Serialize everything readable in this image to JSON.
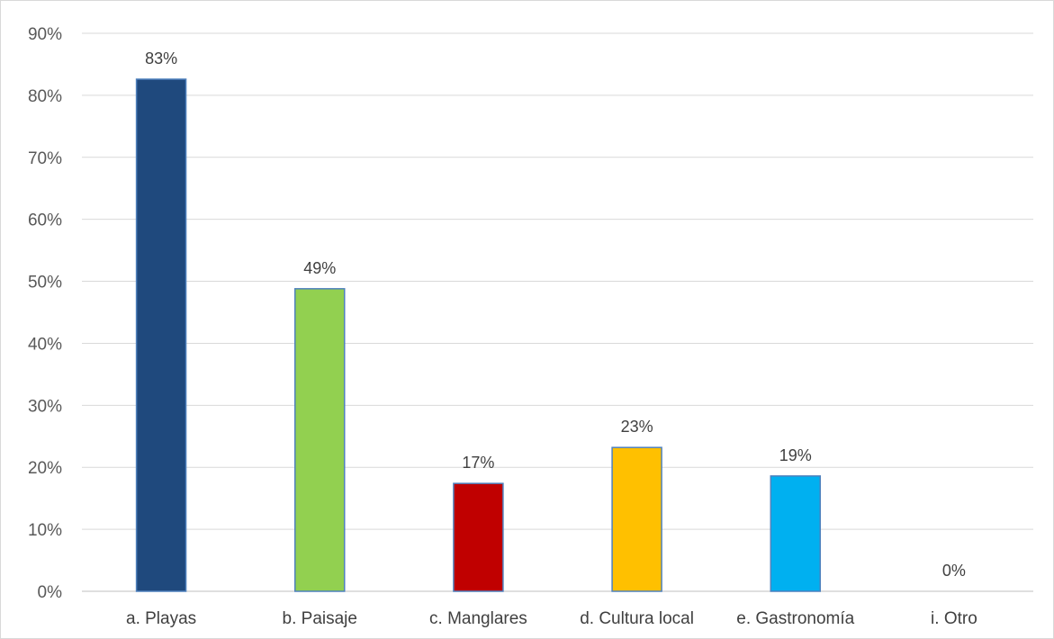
{
  "chart_data": {
    "type": "bar",
    "categories": [
      "a. Playas",
      "b. Paisaje",
      "c. Manglares",
      "d. Cultura local",
      "e. Gastronomía",
      "i. Otro"
    ],
    "values": [
      0.826,
      0.488,
      0.174,
      0.232,
      0.186,
      0.0
    ],
    "data_labels": [
      "83%",
      "49%",
      "17%",
      "23%",
      "19%",
      "0%"
    ],
    "bar_colors": [
      "#1f497d",
      "#92d050",
      "#c00000",
      "#ffc000",
      "#00b0f0",
      "#7f7f7f"
    ],
    "bar_border_color": "#4f81bd",
    "y_ticks": [
      "0%",
      "10%",
      "20%",
      "30%",
      "40%",
      "50%",
      "60%",
      "70%",
      "80%",
      "90%"
    ],
    "ylim": [
      0,
      0.9
    ],
    "title": "",
    "xlabel": "",
    "ylabel": "",
    "grid": true,
    "legend": "none"
  }
}
